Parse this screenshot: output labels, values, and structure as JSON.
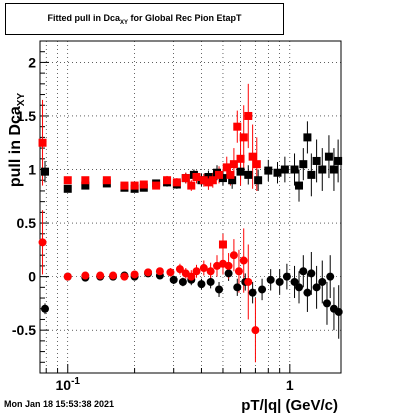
{
  "chart_data": {
    "type": "scatter",
    "title": "Fitted pull in Dca_XY for Global Rec Pion EtapT",
    "title_main": "Fitted pull in Dca",
    "title_sub": "XY",
    "title_tail": " for Global Rec Pion EtapT",
    "xlabel": "pT/|q| (GeV/c)",
    "ylabel_main": "pull in Dca",
    "ylabel_sub": "XY",
    "x_scale": "log",
    "xlim": [
      0.075,
      1.7
    ],
    "ylim": [
      -0.9,
      2.2
    ],
    "grid": true,
    "x_ticks": [
      {
        "value": 0.1,
        "label": "10",
        "exp": "-1"
      },
      {
        "value": 1,
        "label": "1",
        "exp": ""
      }
    ],
    "y_ticks": [
      {
        "value": -0.5,
        "label": "-0.5"
      },
      {
        "value": 0,
        "label": "0"
      },
      {
        "value": 0.5,
        "label": "0.5"
      },
      {
        "value": 1,
        "label": "1"
      },
      {
        "value": 1.5,
        "label": "1.5"
      },
      {
        "value": 2,
        "label": "2"
      }
    ],
    "series": [
      {
        "color": "#000000",
        "marker": "square",
        "points": [
          {
            "x": 0.079,
            "y": 0.98,
            "err": 0.1
          },
          {
            "x": 0.1,
            "y": 0.82,
            "err": 0.02
          },
          {
            "x": 0.12,
            "y": 0.85,
            "err": 0.02
          },
          {
            "x": 0.15,
            "y": 0.87,
            "err": 0.02
          },
          {
            "x": 0.18,
            "y": 0.83,
            "err": 0.03
          },
          {
            "x": 0.2,
            "y": 0.82,
            "err": 0.03
          },
          {
            "x": 0.22,
            "y": 0.83,
            "err": 0.03
          },
          {
            "x": 0.25,
            "y": 0.87,
            "err": 0.03
          },
          {
            "x": 0.28,
            "y": 0.88,
            "err": 0.04
          },
          {
            "x": 0.31,
            "y": 0.86,
            "err": 0.04
          },
          {
            "x": 0.34,
            "y": 0.92,
            "err": 0.05
          },
          {
            "x": 0.37,
            "y": 0.95,
            "err": 0.05
          },
          {
            "x": 0.4,
            "y": 0.9,
            "err": 0.06
          },
          {
            "x": 0.43,
            "y": 0.93,
            "err": 0.06
          },
          {
            "x": 0.47,
            "y": 0.97,
            "err": 0.07
          },
          {
            "x": 0.5,
            "y": 0.92,
            "err": 0.07
          },
          {
            "x": 0.55,
            "y": 0.9,
            "err": 0.08
          },
          {
            "x": 0.6,
            "y": 0.98,
            "err": 0.08
          },
          {
            "x": 0.65,
            "y": 0.95,
            "err": 0.09
          },
          {
            "x": 0.72,
            "y": 0.9,
            "err": 0.1
          },
          {
            "x": 0.8,
            "y": 0.99,
            "err": 0.1
          },
          {
            "x": 0.88,
            "y": 0.97,
            "err": 0.1
          },
          {
            "x": 0.95,
            "y": 1.0,
            "err": 0.12
          },
          {
            "x": 1.05,
            "y": 1.0,
            "err": 0.15
          },
          {
            "x": 1.1,
            "y": 0.85,
            "err": 0.15
          },
          {
            "x": 1.15,
            "y": 1.05,
            "err": 0.15
          },
          {
            "x": 1.2,
            "y": 1.3,
            "err": 0.15
          },
          {
            "x": 1.25,
            "y": 0.95,
            "err": 0.2
          },
          {
            "x": 1.32,
            "y": 1.08,
            "err": 0.2
          },
          {
            "x": 1.4,
            "y": 1.0,
            "err": 0.2
          },
          {
            "x": 1.5,
            "y": 1.12,
            "err": 0.2
          },
          {
            "x": 1.58,
            "y": 1.0,
            "err": 0.2
          },
          {
            "x": 1.65,
            "y": 1.08,
            "err": 0.2
          }
        ]
      },
      {
        "color": "#000000",
        "marker": "circle",
        "points": [
          {
            "x": 0.079,
            "y": -0.3,
            "err": 0.05
          },
          {
            "x": 0.1,
            "y": 0.0,
            "err": 0.02
          },
          {
            "x": 0.12,
            "y": -0.01,
            "err": 0.02
          },
          {
            "x": 0.14,
            "y": 0.0,
            "err": 0.02
          },
          {
            "x": 0.16,
            "y": 0.0,
            "err": 0.02
          },
          {
            "x": 0.18,
            "y": 0.01,
            "err": 0.03
          },
          {
            "x": 0.2,
            "y": 0.0,
            "err": 0.03
          },
          {
            "x": 0.23,
            "y": 0.03,
            "err": 0.03
          },
          {
            "x": 0.26,
            "y": 0.01,
            "err": 0.03
          },
          {
            "x": 0.3,
            "y": -0.03,
            "err": 0.04
          },
          {
            "x": 0.33,
            "y": -0.05,
            "err": 0.04
          },
          {
            "x": 0.36,
            "y": -0.03,
            "err": 0.05
          },
          {
            "x": 0.4,
            "y": -0.07,
            "err": 0.05
          },
          {
            "x": 0.44,
            "y": -0.05,
            "err": 0.06
          },
          {
            "x": 0.48,
            "y": -0.12,
            "err": 0.07
          },
          {
            "x": 0.53,
            "y": 0.03,
            "err": 0.07
          },
          {
            "x": 0.58,
            "y": -0.1,
            "err": 0.08
          },
          {
            "x": 0.63,
            "y": -0.05,
            "err": 0.08
          },
          {
            "x": 0.68,
            "y": -0.15,
            "err": 0.1
          },
          {
            "x": 0.75,
            "y": -0.12,
            "err": 0.1
          },
          {
            "x": 0.82,
            "y": -0.03,
            "err": 0.1
          },
          {
            "x": 0.9,
            "y": -0.05,
            "err": 0.12
          },
          {
            "x": 0.97,
            "y": 0.0,
            "err": 0.12
          },
          {
            "x": 1.05,
            "y": -0.05,
            "err": 0.15
          },
          {
            "x": 1.1,
            "y": -0.1,
            "err": 0.15
          },
          {
            "x": 1.15,
            "y": 0.05,
            "err": 0.15
          },
          {
            "x": 1.2,
            "y": -0.15,
            "err": 0.18
          },
          {
            "x": 1.25,
            "y": 0.03,
            "err": 0.2
          },
          {
            "x": 1.32,
            "y": -0.1,
            "err": 0.2
          },
          {
            "x": 1.4,
            "y": -0.05,
            "err": 0.2
          },
          {
            "x": 1.47,
            "y": -0.25,
            "err": 0.2
          },
          {
            "x": 1.52,
            "y": 0.0,
            "err": 0.2
          },
          {
            "x": 1.58,
            "y": -0.3,
            "err": 0.2
          },
          {
            "x": 1.66,
            "y": -0.33,
            "err": 0.25
          }
        ]
      },
      {
        "color": "#ff0000",
        "marker": "square",
        "points": [
          {
            "x": 0.077,
            "y": 1.25,
            "err": 0.4
          },
          {
            "x": 0.1,
            "y": 0.9,
            "err": 0.02
          },
          {
            "x": 0.12,
            "y": 0.9,
            "err": 0.02
          },
          {
            "x": 0.15,
            "y": 0.9,
            "err": 0.02
          },
          {
            "x": 0.18,
            "y": 0.85,
            "err": 0.03
          },
          {
            "x": 0.2,
            "y": 0.85,
            "err": 0.03
          },
          {
            "x": 0.22,
            "y": 0.86,
            "err": 0.03
          },
          {
            "x": 0.25,
            "y": 0.85,
            "err": 0.03
          },
          {
            "x": 0.28,
            "y": 0.9,
            "err": 0.04
          },
          {
            "x": 0.31,
            "y": 0.88,
            "err": 0.04
          },
          {
            "x": 0.34,
            "y": 0.92,
            "err": 0.05
          },
          {
            "x": 0.36,
            "y": 0.85,
            "err": 0.05
          },
          {
            "x": 0.38,
            "y": 0.93,
            "err": 0.06
          },
          {
            "x": 0.41,
            "y": 0.9,
            "err": 0.06
          },
          {
            "x": 0.43,
            "y": 0.88,
            "err": 0.07
          },
          {
            "x": 0.45,
            "y": 0.9,
            "err": 0.07
          },
          {
            "x": 0.48,
            "y": 0.95,
            "err": 0.08
          },
          {
            "x": 0.5,
            "y": 0.3,
            "err": 0.1
          },
          {
            "x": 0.52,
            "y": 1.02,
            "err": 0.1
          },
          {
            "x": 0.54,
            "y": 0.95,
            "err": 0.1
          },
          {
            "x": 0.56,
            "y": 1.05,
            "err": 0.15
          },
          {
            "x": 0.58,
            "y": 1.4,
            "err": 0.15
          },
          {
            "x": 0.6,
            "y": 1.1,
            "err": 0.25
          },
          {
            "x": 0.62,
            "y": 1.3,
            "err": 0.3
          },
          {
            "x": 0.65,
            "y": 1.5,
            "err": 0.3
          },
          {
            "x": 0.68,
            "y": 1.12,
            "err": 0.3
          },
          {
            "x": 0.71,
            "y": 1.05,
            "err": 0.25
          }
        ]
      },
      {
        "color": "#ff0000",
        "marker": "circle",
        "points": [
          {
            "x": 0.077,
            "y": 0.32,
            "err": 0.3
          },
          {
            "x": 0.1,
            "y": 0.0,
            "err": 0.02
          },
          {
            "x": 0.12,
            "y": 0.01,
            "err": 0.02
          },
          {
            "x": 0.14,
            "y": 0.01,
            "err": 0.02
          },
          {
            "x": 0.16,
            "y": 0.01,
            "err": 0.02
          },
          {
            "x": 0.18,
            "y": 0.0,
            "err": 0.03
          },
          {
            "x": 0.2,
            "y": 0.02,
            "err": 0.03
          },
          {
            "x": 0.23,
            "y": 0.04,
            "err": 0.03
          },
          {
            "x": 0.26,
            "y": 0.05,
            "err": 0.03
          },
          {
            "x": 0.29,
            "y": 0.04,
            "err": 0.04
          },
          {
            "x": 0.32,
            "y": 0.07,
            "err": 0.05
          },
          {
            "x": 0.34,
            "y": 0.03,
            "err": 0.05
          },
          {
            "x": 0.36,
            "y": 0.0,
            "err": 0.06
          },
          {
            "x": 0.38,
            "y": 0.05,
            "err": 0.06
          },
          {
            "x": 0.41,
            "y": 0.08,
            "err": 0.07
          },
          {
            "x": 0.44,
            "y": 0.05,
            "err": 0.08
          },
          {
            "x": 0.47,
            "y": 0.1,
            "err": 0.1
          },
          {
            "x": 0.5,
            "y": 0.12,
            "err": 0.1
          },
          {
            "x": 0.53,
            "y": 0.1,
            "err": 0.12
          },
          {
            "x": 0.56,
            "y": 0.2,
            "err": 0.15
          },
          {
            "x": 0.59,
            "y": 0.05,
            "err": 0.2
          },
          {
            "x": 0.62,
            "y": 0.15,
            "err": 0.3
          },
          {
            "x": 0.65,
            "y": -0.05,
            "err": 0.35
          },
          {
            "x": 0.7,
            "y": -0.5,
            "err": 0.3
          }
        ]
      }
    ]
  },
  "footer": {
    "date": "Mon Jan 18 15:53:38 2021"
  }
}
